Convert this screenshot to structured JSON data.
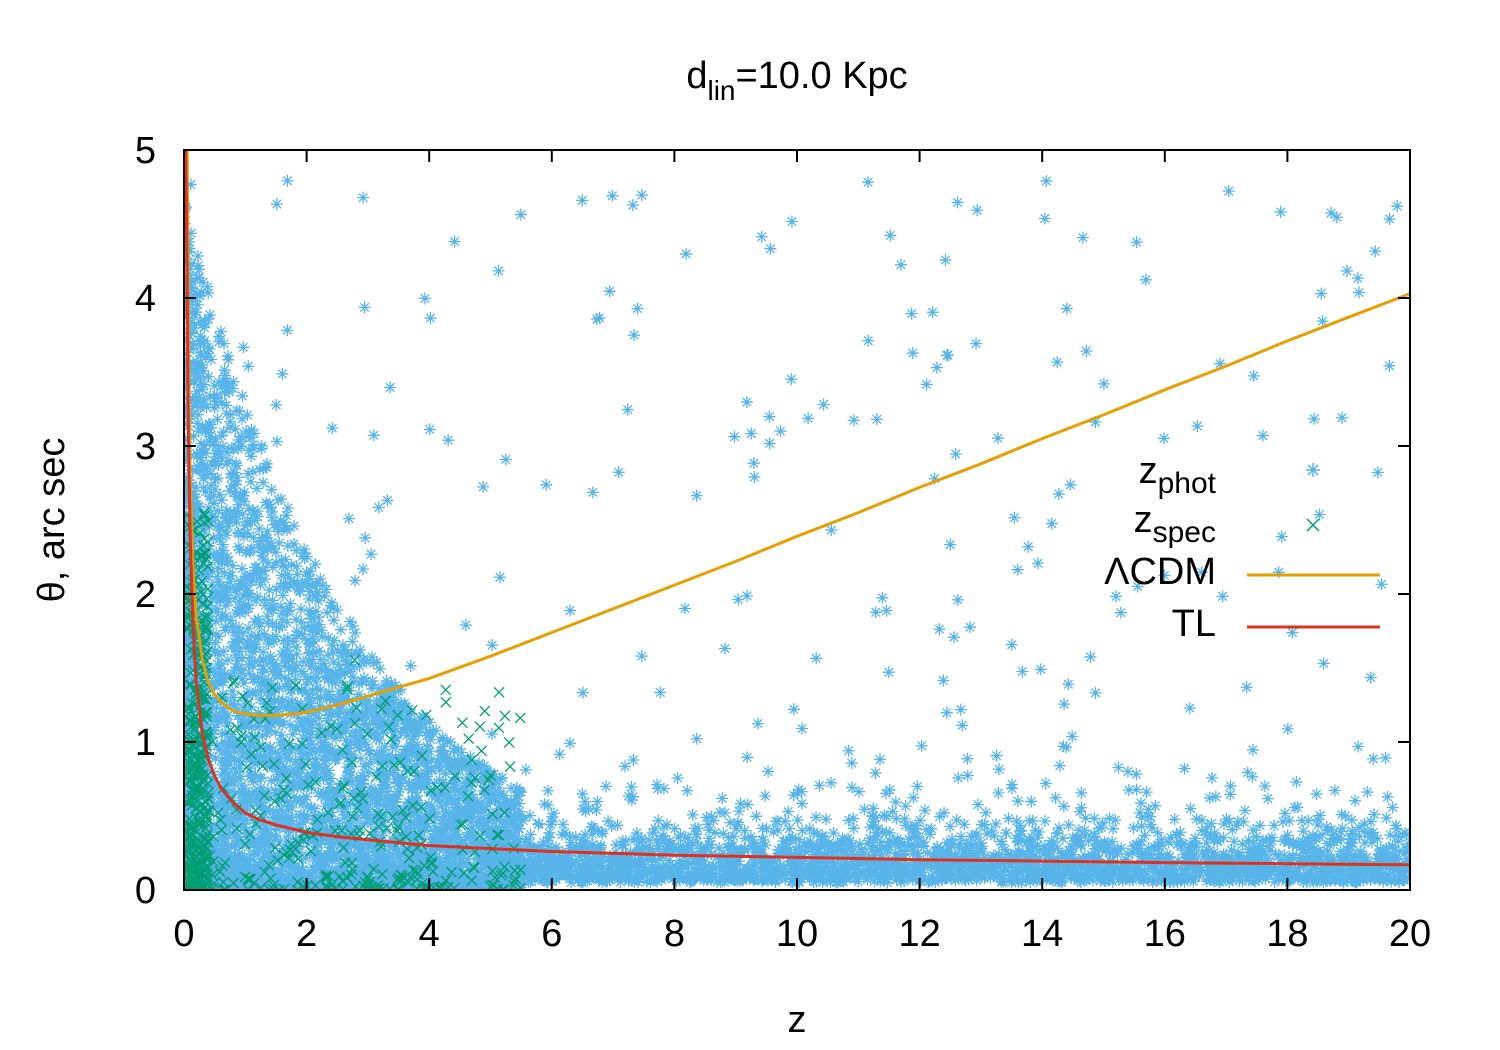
{
  "chart_data": {
    "type": "scatter",
    "title": {
      "base": "d",
      "sub": "lin",
      "rest": "=10.0 Kpc"
    },
    "xlabel": "z",
    "ylabel": "θ, arc sec",
    "xlim": [
      0,
      20
    ],
    "ylim": [
      0,
      5
    ],
    "x_ticks": [
      "0",
      "2",
      "4",
      "6",
      "8",
      "10",
      "12",
      "14",
      "16",
      "18",
      "20"
    ],
    "y_ticks": [
      "0",
      "1",
      "2",
      "3",
      "4",
      "5"
    ],
    "x_tick_values": [
      0,
      2,
      4,
      6,
      8,
      10,
      12,
      14,
      16,
      18,
      20
    ],
    "y_tick_values": [
      0,
      1,
      2,
      3,
      4,
      5
    ],
    "grid": false,
    "legend_position": "right",
    "legend": [
      {
        "base": "z",
        "sub": "phot",
        "marker": "star",
        "color": "#56b4e9"
      },
      {
        "base": "z",
        "sub": "spec",
        "marker": "cross",
        "color": "#009e73"
      },
      {
        "base": "ΛCDM",
        "sub": "",
        "marker": "line",
        "color": "#e69f00"
      },
      {
        "base": "TL",
        "sub": "",
        "marker": "line",
        "color": "#e0301e"
      }
    ],
    "series": [
      {
        "name": "ΛCDM",
        "type": "line",
        "color": "#e69f00",
        "x": [
          0.05,
          0.08,
          0.1,
          0.15,
          0.2,
          0.3,
          0.4,
          0.5,
          0.6,
          0.8,
          1.0,
          1.2,
          1.5,
          1.8,
          2.0,
          2.5,
          3.0,
          3.5,
          4.0,
          5.0,
          6.0,
          7.0,
          8.0,
          9.0,
          10.0,
          11.0,
          12.0,
          13.0,
          14.0,
          15.0,
          16.0,
          17.0,
          18.0,
          19.0,
          20.0
        ],
        "y": [
          5.0,
          3.4,
          2.8,
          2.15,
          1.85,
          1.55,
          1.4,
          1.32,
          1.27,
          1.21,
          1.19,
          1.18,
          1.18,
          1.19,
          1.2,
          1.25,
          1.31,
          1.37,
          1.43,
          1.58,
          1.74,
          1.9,
          2.06,
          2.22,
          2.39,
          2.55,
          2.72,
          2.88,
          3.05,
          3.21,
          3.38,
          3.54,
          3.71,
          3.87,
          4.03
        ]
      },
      {
        "name": "TL",
        "type": "line",
        "color": "#e0301e",
        "x": [
          0.03,
          0.05,
          0.07,
          0.1,
          0.15,
          0.2,
          0.3,
          0.4,
          0.5,
          0.6,
          0.8,
          1.0,
          1.2,
          1.5,
          2.0,
          2.5,
          3.0,
          4.0,
          5.0,
          6.0,
          8.0,
          10.0,
          12.0,
          14.0,
          16.0,
          18.0,
          20.0
        ],
        "y": [
          5.0,
          4.1,
          3.1,
          2.4,
          1.75,
          1.4,
          1.05,
          0.88,
          0.77,
          0.69,
          0.59,
          0.52,
          0.48,
          0.44,
          0.39,
          0.36,
          0.34,
          0.3,
          0.28,
          0.26,
          0.235,
          0.22,
          0.205,
          0.195,
          0.185,
          0.178,
          0.17
        ]
      }
    ],
    "scatter_clusters": [
      {
        "name": "z_phot",
        "color": "#56b4e9",
        "marker": "star",
        "count": 7000,
        "seed": 11
      },
      {
        "name": "z_spec",
        "color": "#009e73",
        "marker": "cross",
        "count": 650,
        "seed": 29
      }
    ]
  }
}
